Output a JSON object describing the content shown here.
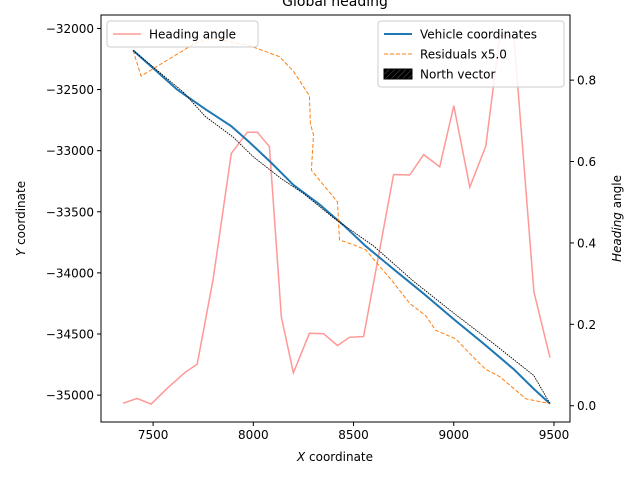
{
  "chart_data": {
    "type": "line",
    "title": "Global heading",
    "xlabel": "X coordinate",
    "ylabel": "Y coordinate",
    "y2label": "Heading angle",
    "xlim": [
      7240,
      9580
    ],
    "ylim": [
      -35220,
      -31890
    ],
    "y2lim": [
      -0.04,
      0.96
    ],
    "xticks": [
      7500,
      8000,
      8500,
      9000,
      9500
    ],
    "xtick_labels": [
      "7500",
      "8000",
      "8500",
      "9000",
      "9500"
    ],
    "yticks": [
      -35000,
      -34500,
      -34000,
      -33500,
      -33000,
      -32500,
      -32000
    ],
    "ytick_labels": [
      "−35000",
      "−34500",
      "−34000",
      "−33500",
      "−33000",
      "−32500",
      "−32000"
    ],
    "y2ticks": [
      0.0,
      0.2,
      0.4,
      0.6,
      0.8
    ],
    "y2tick_labels": [
      "0.0",
      "0.2",
      "0.4",
      "0.6",
      "0.8"
    ],
    "legend_left": {
      "placement": "upper-left",
      "entries": [
        {
          "label": "Heading angle",
          "color": "#ff9896",
          "style": "solid"
        }
      ]
    },
    "legend_right": {
      "placement": "upper-right",
      "entries": [
        {
          "label": "Vehicle coordinates",
          "color": "#1f77b4",
          "style": "solid"
        },
        {
          "label": "Residuals x5.0",
          "color": "#ff7f0e",
          "style": "dashed"
        },
        {
          "label": "North vector",
          "color": "#000000",
          "style": "hatched-patch"
        }
      ]
    },
    "series": [
      {
        "name": "Vehicle coordinates",
        "axis": "left",
        "color": "#1f77b4",
        "x": [
          7400,
          7620,
          7760,
          7890,
          7980,
          8090,
          8200,
          8330,
          8450,
          8560,
          8700,
          8850,
          9000,
          9150,
          9300,
          9400,
          9480
        ],
        "y": [
          -32180,
          -32500,
          -32660,
          -32800,
          -32930,
          -33100,
          -33280,
          -33440,
          -33610,
          -33780,
          -33970,
          -34170,
          -34380,
          -34580,
          -34790,
          -34950,
          -35070
        ]
      },
      {
        "name": "Residuals x5.0",
        "axis": "left",
        "color": "#ff7f0e",
        "x": [
          7400,
          7440,
          7710,
          7800,
          7980,
          8130,
          8200,
          8280,
          8285,
          8300,
          8290,
          8420,
          8430,
          8500,
          8560,
          8700,
          8780,
          8860,
          8910,
          9010,
          9110,
          9160,
          9230,
          9360,
          9480
        ],
        "y": [
          -32180,
          -32390,
          -32120,
          -32080,
          -32140,
          -32230,
          -32350,
          -32550,
          -32780,
          -32870,
          -33160,
          -33420,
          -33730,
          -33770,
          -33810,
          -34080,
          -34250,
          -34350,
          -34470,
          -34540,
          -34710,
          -34790,
          -34850,
          -35030,
          -35070
        ]
      },
      {
        "name": "North vector",
        "axis": "left",
        "color": "#000000",
        "x": [
          7400,
          7650,
          7760,
          7900,
          8000,
          8140,
          8250,
          8400,
          8600,
          8800,
          9000,
          9200,
          9400,
          9480
        ],
        "y": [
          -32180,
          -32520,
          -32720,
          -32890,
          -33050,
          -33230,
          -33350,
          -33550,
          -33780,
          -34070,
          -34330,
          -34580,
          -34840,
          -35070
        ]
      },
      {
        "name": "Heading angle",
        "axis": "right",
        "color": "#ff9896",
        "x": [
          7350,
          7420,
          7490,
          7580,
          7660,
          7720,
          7800,
          7890,
          7970,
          8020,
          8080,
          8140,
          8200,
          8280,
          8350,
          8420,
          8480,
          8550,
          8700,
          8780,
          8850,
          8930,
          9000,
          9080,
          9160,
          9230,
          9300,
          9400,
          9480
        ],
        "y": [
          0.006,
          0.018,
          0.004,
          0.047,
          0.082,
          0.102,
          0.312,
          0.62,
          0.672,
          0.672,
          0.637,
          0.217,
          0.081,
          0.178,
          0.177,
          0.148,
          0.168,
          0.17,
          0.568,
          0.567,
          0.617,
          0.587,
          0.737,
          0.537,
          0.638,
          0.91,
          0.907,
          0.28,
          0.118
        ]
      }
    ]
  }
}
